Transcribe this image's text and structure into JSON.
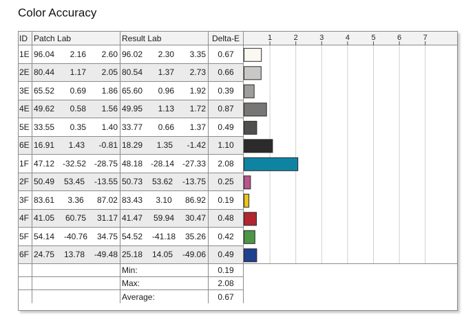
{
  "title": "Color Accuracy",
  "headers": {
    "id": "ID",
    "patch": "Patch Lab",
    "result": "Result Lab",
    "delta": "Delta-E"
  },
  "rows": [
    {
      "id": "1E",
      "patch": [
        "96.04",
        "2.16",
        "2.60"
      ],
      "result": [
        "96.02",
        "2.30",
        "3.35"
      ],
      "delta": "0.67",
      "color": "#fbf7f1"
    },
    {
      "id": "2E",
      "patch": [
        "80.44",
        "1.17",
        "2.05"
      ],
      "result": [
        "80.54",
        "1.37",
        "2.73"
      ],
      "delta": "0.66",
      "color": "#c9c8c6"
    },
    {
      "id": "3E",
      "patch": [
        "65.52",
        "0.69",
        "1.86"
      ],
      "result": [
        "65.60",
        "0.96",
        "1.92"
      ],
      "delta": "0.39",
      "color": "#9f9e9c"
    },
    {
      "id": "4E",
      "patch": [
        "49.62",
        "0.58",
        "1.56"
      ],
      "result": [
        "49.95",
        "1.13",
        "1.72"
      ],
      "delta": "0.87",
      "color": "#777674"
    },
    {
      "id": "5E",
      "patch": [
        "33.55",
        "0.35",
        "1.40"
      ],
      "result": [
        "33.77",
        "0.66",
        "1.37"
      ],
      "delta": "0.49",
      "color": "#4f4f4e"
    },
    {
      "id": "6E",
      "patch": [
        "16.91",
        "1.43",
        "-0.81"
      ],
      "result": [
        "18.29",
        "1.35",
        "-1.42"
      ],
      "delta": "1.10",
      "color": "#2c2b2c"
    },
    {
      "id": "1F",
      "patch": [
        "47.12",
        "-32.52",
        "-28.75"
      ],
      "result": [
        "48.18",
        "-28.14",
        "-27.33"
      ],
      "delta": "2.08",
      "color": "#0f84a2"
    },
    {
      "id": "2F",
      "patch": [
        "50.49",
        "53.45",
        "-13.55"
      ],
      "result": [
        "50.73",
        "53.62",
        "-13.75"
      ],
      "delta": "0.25",
      "color": "#b8558d"
    },
    {
      "id": "3F",
      "patch": [
        "83.61",
        "3.36",
        "87.02"
      ],
      "result": [
        "83.43",
        "3.10",
        "86.92"
      ],
      "delta": "0.19",
      "color": "#ecc316"
    },
    {
      "id": "4F",
      "patch": [
        "41.05",
        "60.75",
        "31.17"
      ],
      "result": [
        "41.47",
        "59.94",
        "30.47"
      ],
      "delta": "0.48",
      "color": "#b2262f"
    },
    {
      "id": "5F",
      "patch": [
        "54.14",
        "-40.76",
        "34.75"
      ],
      "result": [
        "54.52",
        "-41.18",
        "35.26"
      ],
      "delta": "0.42",
      "color": "#4e9545"
    },
    {
      "id": "6F",
      "patch": [
        "24.75",
        "13.78",
        "-49.48"
      ],
      "result": [
        "25.18",
        "14.05",
        "-49.06"
      ],
      "delta": "0.49",
      "color": "#213f8f"
    }
  ],
  "summary": [
    {
      "label": "Min:",
      "value": "0.19"
    },
    {
      "label": "Max:",
      "value": "2.08"
    },
    {
      "label": "Average:",
      "value": "0.67"
    }
  ],
  "chart_data": {
    "type": "bar",
    "orientation": "horizontal",
    "categories": [
      "1E",
      "2E",
      "3E",
      "4E",
      "5E",
      "6E",
      "1F",
      "2F",
      "3F",
      "4F",
      "5F",
      "6F"
    ],
    "values": [
      0.67,
      0.66,
      0.39,
      0.87,
      0.49,
      1.1,
      2.08,
      0.25,
      0.19,
      0.48,
      0.42,
      0.49
    ],
    "xticks": [
      "1",
      "2",
      "3",
      "4",
      "5",
      "6",
      "7"
    ],
    "xlim": [
      0,
      7.5
    ],
    "grid": true
  }
}
